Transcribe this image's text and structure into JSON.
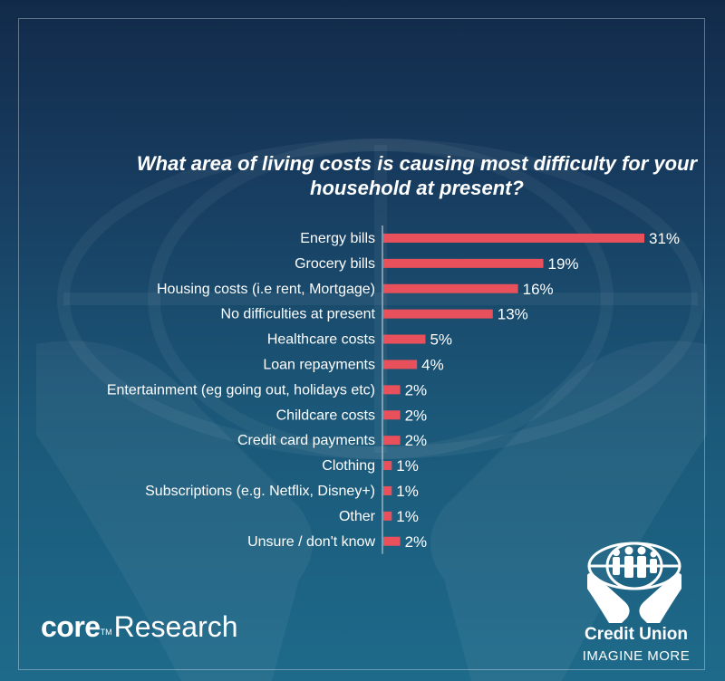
{
  "chart_data": {
    "type": "bar",
    "orientation": "horizontal",
    "title": "What area of living costs is causing most difficulty for your household at present?",
    "categories": [
      "Energy bills",
      "Grocery bills",
      "Housing costs (i.e rent, Mortgage)",
      "No difficulties at present",
      "Healthcare costs",
      "Loan repayments",
      "Entertainment (eg going out, holidays etc)",
      "Childcare costs",
      "Credit card payments",
      "Clothing",
      "Subscriptions (e.g. Netflix, Disney+)",
      "Other",
      "Unsure / don't know"
    ],
    "values": [
      31,
      19,
      16,
      13,
      5,
      4,
      2,
      2,
      2,
      1,
      1,
      1,
      2
    ],
    "value_labels": [
      "31%",
      "19%",
      "16%",
      "13%",
      "5%",
      "4%",
      "2%",
      "2%",
      "2%",
      "1%",
      "1%",
      "1%",
      "2%"
    ],
    "unit": "%",
    "xlim": [
      0,
      31
    ],
    "grid": false,
    "bar_color": "#e8505b"
  },
  "branding": {
    "core_bold": "core",
    "core_tm": "TM",
    "core_rest": "Research",
    "cu_name": "Credit Union",
    "cu_tagline": "IMAGINE MORE"
  },
  "icons": [
    "globe-watermark-icon",
    "hands-watermark-icon",
    "credit-union-logo-icon"
  ]
}
